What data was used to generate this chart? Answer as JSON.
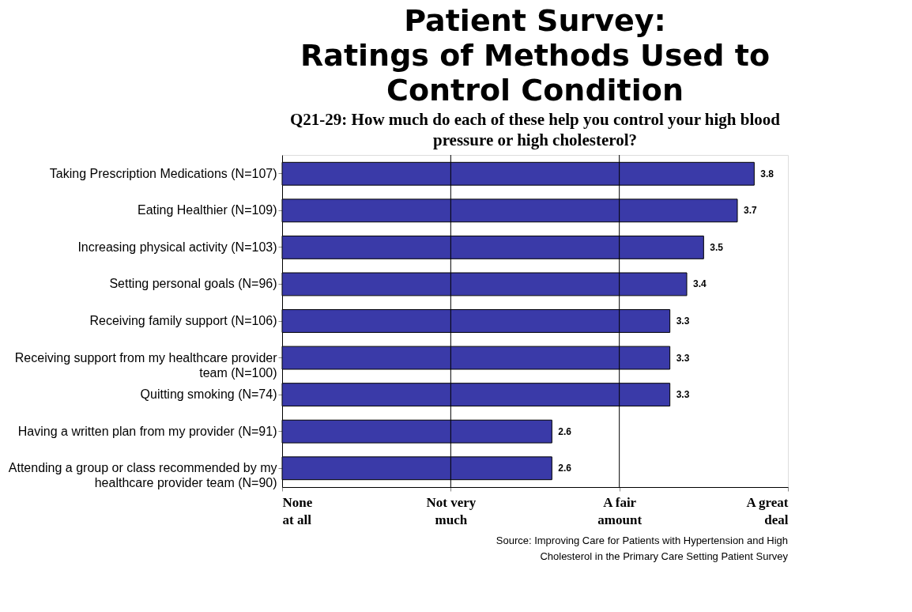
{
  "chart_data": {
    "type": "bar",
    "orientation": "horizontal",
    "title": "Patient Survey:\nRatings of Methods Used to\nControl Condition",
    "subtitle": "Q21-29:  How much do each of these help you control your high blood\npressure or high cholesterol?",
    "categories": [
      "Taking Prescription Medications (N=107)",
      "Eating Healthier (N=109)",
      "Increasing physical activity (N=103)",
      "Setting personal goals (N=96)",
      "Receiving family support (N=106)",
      "Receiving support from my healthcare provider\nteam (N=100)",
      "Quitting smoking (N=74)",
      "Having a written plan from my provider (N=91)",
      "Attending a group or class recommended by my\nhealthcare provider team (N=90)"
    ],
    "values": [
      3.8,
      3.7,
      3.5,
      3.4,
      3.3,
      3.3,
      3.3,
      2.6,
      2.6
    ],
    "color": "#3a3aa8",
    "xlim": [
      1,
      4
    ],
    "ref_lines": [
      {
        "axis": "x",
        "value": 2,
        "color": "#000000"
      },
      {
        "axis": "x",
        "value": 3,
        "color": "#000000"
      }
    ],
    "data_labels": true,
    "annotations": [
      "None\nat all",
      "Not very\nmuch",
      "A fair\namount",
      "A great\ndeal",
      "Source: Improving Care for Patients with Hypertension and High\nCholesterol in the Primary Care Setting Patient Survey"
    ]
  }
}
